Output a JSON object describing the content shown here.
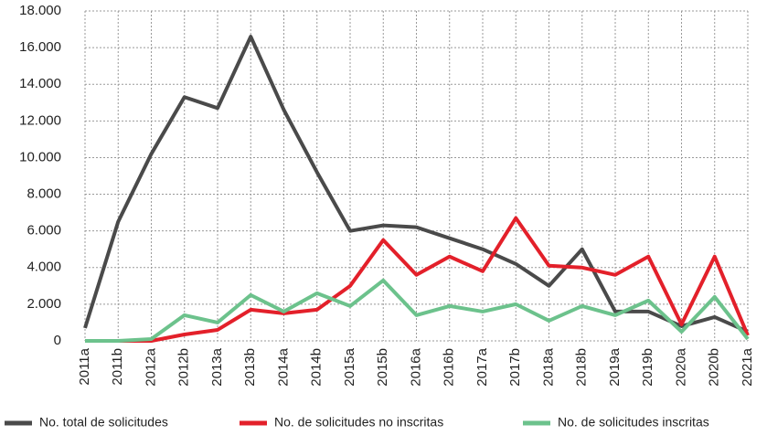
{
  "chart_data": {
    "type": "line",
    "categories": [
      "2011a",
      "2011b",
      "2012a",
      "2012b",
      "2013a",
      "2013b",
      "2014a",
      "2014b",
      "2015a",
      "2015b",
      "2016a",
      "2016b",
      "2017a",
      "2017b",
      "2018a",
      "2018b",
      "2019a",
      "2019b",
      "2020a",
      "2020b",
      "2021a"
    ],
    "series": [
      {
        "name": "No. total de solicitudes",
        "color": "#4a4a4a",
        "values": [
          700,
          6500,
          10200,
          13300,
          12700,
          16600,
          12600,
          9200,
          6000,
          6300,
          6200,
          5600,
          5000,
          4200,
          3000,
          5000,
          1600,
          1600,
          800,
          1300,
          500
        ]
      },
      {
        "name": "No. de solicitudes no inscritas",
        "color": "#e3202a",
        "values": [
          0,
          0,
          0,
          350,
          600,
          1700,
          1500,
          1700,
          3000,
          5500,
          3600,
          4600,
          3800,
          6700,
          4100,
          4000,
          3600,
          4600,
          900,
          4600,
          300
        ]
      },
      {
        "name": "No. de solicitudes inscritas",
        "color": "#6cc28c",
        "values": [
          0,
          0,
          100,
          1400,
          1000,
          2500,
          1600,
          2600,
          1900,
          3300,
          1400,
          1900,
          1600,
          2000,
          1100,
          1900,
          1400,
          2200,
          500,
          2400,
          100
        ]
      }
    ],
    "ylim": [
      0,
      18000
    ],
    "yticks": [
      0,
      {
        "value": 2000,
        "label": "2.000"
      },
      {
        "value": 4000,
        "label": "4.000"
      },
      {
        "value": 6000,
        "label": "6.000"
      },
      {
        "value": 8000,
        "label": "8.000"
      },
      {
        "value": 10000,
        "label": "10.000"
      },
      {
        "value": 12000,
        "label": "12.000"
      },
      {
        "value": 14000,
        "label": "14.000"
      },
      {
        "value": 16000,
        "label": "16.000"
      },
      {
        "value": 18000,
        "label": "18.000"
      }
    ],
    "grid": true
  }
}
